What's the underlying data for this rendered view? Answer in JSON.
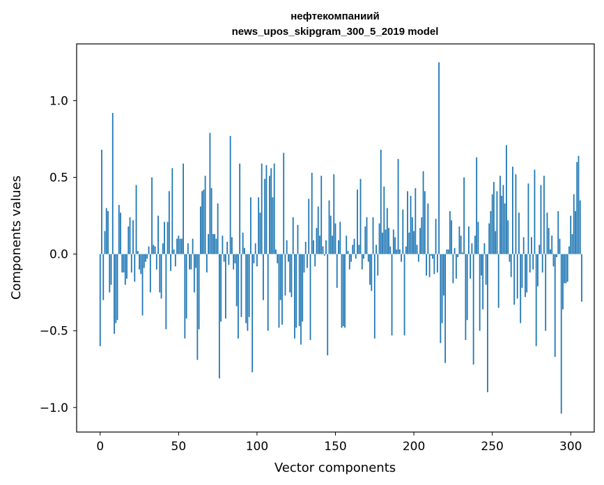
{
  "chart_data": {
    "type": "bar",
    "title": "нефтекомпаниий",
    "subtitle": "news_upos_skipgram_300_5_2019 model",
    "xlabel": "Vector components",
    "ylabel": "Components values",
    "xlim": [
      -15,
      315
    ],
    "ylim": [
      -1.16,
      1.37
    ],
    "xticks": [
      0,
      50,
      100,
      150,
      200,
      250,
      300
    ],
    "xtick_labels": [
      "0",
      "50",
      "100",
      "150",
      "200",
      "250",
      "300"
    ],
    "yticks": [
      -1.0,
      -0.5,
      0.0,
      0.5,
      1.0
    ],
    "ytick_labels": [
      "−1.0",
      "−0.5",
      "0.0",
      "0.5",
      "1.0"
    ],
    "grid": false,
    "bar_color": "#1f77b4",
    "values": [
      -0.6,
      0.68,
      -0.3,
      0.15,
      0.3,
      0.28,
      -0.25,
      -0.2,
      0.92,
      -0.52,
      -0.45,
      -0.43,
      0.32,
      0.27,
      -0.12,
      -0.12,
      -0.2,
      -0.16,
      0.18,
      0.24,
      -0.12,
      0.22,
      -0.18,
      0.45,
      0.02,
      -0.1,
      -0.13,
      -0.4,
      -0.09,
      -0.05,
      -0.03,
      0.05,
      -0.25,
      0.5,
      0.06,
      0.05,
      -0.1,
      0.25,
      -0.25,
      -0.29,
      0.07,
      0.21,
      -0.49,
      0.21,
      0.41,
      -0.11,
      0.56,
      0.03,
      -0.08,
      0.1,
      0.12,
      0.1,
      0.1,
      0.59,
      -0.55,
      -0.42,
      0.07,
      -0.1,
      -0.1,
      0.1,
      -0.25,
      -0.09,
      -0.69,
      -0.49,
      0.31,
      0.41,
      0.42,
      0.51,
      -0.12,
      0.13,
      0.79,
      0.43,
      0.13,
      0.13,
      0.1,
      0.33,
      -0.81,
      -0.44,
      0.12,
      -0.05,
      -0.42,
      0.08,
      -0.07,
      0.77,
      0.11,
      -0.1,
      -0.06,
      -0.34,
      -0.55,
      0.59,
      -0.41,
      0.14,
      0.04,
      -0.45,
      -0.5,
      -0.41,
      0.37,
      -0.77,
      -0.06,
      0.07,
      -0.08,
      0.37,
      0.27,
      0.59,
      -0.3,
      0.49,
      0.58,
      -0.5,
      0.51,
      0.56,
      0.37,
      0.59,
      0.03,
      -0.06,
      -0.48,
      -0.3,
      -0.46,
      0.66,
      -0.27,
      0.09,
      -0.05,
      -0.25,
      -0.28,
      0.24,
      -0.55,
      -0.48,
      0.19,
      -0.47,
      -0.59,
      -0.44,
      -0.12,
      0.08,
      -0.09,
      0.36,
      -0.56,
      0.53,
      0.09,
      -0.08,
      0.17,
      0.31,
      0.12,
      0.51,
      0.05,
      -0.01,
      0.09,
      -0.66,
      0.35,
      0.25,
      0.12,
      0.52,
      0.2,
      -0.22,
      0.09,
      0.21,
      -0.48,
      -0.47,
      -0.48,
      0.12,
      0.02,
      -0.1,
      -0.05,
      0.06,
      0.1,
      -0.03,
      0.42,
      0.06,
      0.49,
      -0.1,
      -0.03,
      0.18,
      0.24,
      -0.05,
      -0.2,
      -0.24,
      0.24,
      -0.55,
      0.06,
      -0.14,
      0.2,
      0.68,
      0.14,
      0.44,
      0.16,
      0.3,
      0.17,
      0.05,
      -0.53,
      0.16,
      0.11,
      0.03,
      0.62,
      0.03,
      -0.05,
      0.29,
      -0.53,
      0.05,
      0.41,
      0.14,
      0.38,
      0.24,
      0.15,
      0.43,
      0.06,
      -0.05,
      0.17,
      0.24,
      0.54,
      0.41,
      -0.14,
      0.33,
      -0.15,
      -0.01,
      -0.03,
      -0.13,
      0.23,
      -0.12,
      1.25,
      -0.58,
      -0.45,
      -0.27,
      -0.71,
      0.03,
      0.03,
      0.28,
      0.22,
      -0.19,
      0.04,
      -0.16,
      -0.02,
      0.18,
      0.12,
      0.01,
      0.5,
      -0.56,
      -0.43,
      0.18,
      -0.16,
      0.07,
      -0.72,
      0.12,
      0.63,
      0.21,
      -0.5,
      -0.14,
      -0.36,
      0.07,
      -0.2,
      -0.9,
      0.2,
      0.28,
      0.39,
      0.47,
      0.15,
      0.41,
      -0.35,
      0.51,
      0.38,
      0.45,
      0.33,
      0.71,
      0.22,
      -0.05,
      -0.15,
      0.57,
      -0.33,
      0.52,
      -0.29,
      0.27,
      -0.45,
      -0.22,
      0.11,
      -0.28,
      -0.25,
      0.46,
      -0.12,
      0.11,
      -0.1,
      0.55,
      -0.6,
      -0.21,
      0.06,
      0.45,
      -0.12,
      0.51,
      -0.5,
      0.27,
      0.17,
      0.03,
      0.12,
      -0.08,
      -0.67,
      -0.02,
      0.28,
      0.1,
      -1.04,
      -0.36,
      -0.19,
      -0.19,
      -0.18,
      0.05,
      0.25,
      0.13,
      0.39,
      0.28,
      0.6,
      0.64,
      0.35,
      -0.31
    ]
  }
}
